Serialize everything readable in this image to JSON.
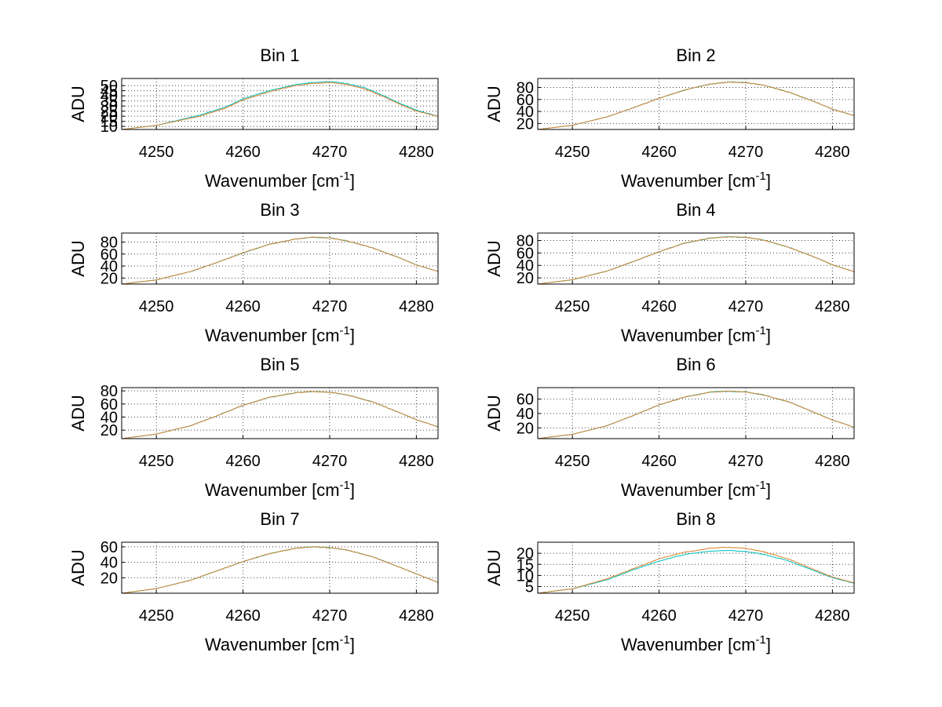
{
  "chart_data": [
    {
      "type": "line",
      "title": "Bin 1",
      "xlabel": "Wavenumber [cm",
      "xlabel_sup": "-1",
      "xlabel_suffix": "]",
      "ylabel": "ADU",
      "xlim": [
        4246,
        4282.5
      ],
      "ylim": [
        7,
        57
      ],
      "xticks": [
        4250,
        4260,
        4270,
        4280
      ],
      "yticks": [
        10,
        15,
        20,
        25,
        30,
        35,
        40,
        45,
        50
      ],
      "grid": true,
      "series": [
        {
          "color": "#00bfbf",
          "x": [
            4246,
            4250,
            4255,
            4258,
            4260,
            4263,
            4266,
            4268,
            4270,
            4272,
            4274,
            4276,
            4278,
            4280,
            4282.5
          ],
          "y": [
            7,
            11,
            21,
            29,
            37,
            45,
            51,
            53,
            54,
            52,
            48,
            41,
            33,
            26,
            20
          ]
        },
        {
          "color": "#d9822b",
          "x": [
            4246,
            4250,
            4255,
            4258,
            4260,
            4263,
            4266,
            4268,
            4270,
            4272,
            4274,
            4276,
            4278,
            4280,
            4282.5
          ],
          "y": [
            7,
            11,
            20,
            28,
            36,
            44,
            50,
            52,
            53,
            51,
            47,
            40,
            32,
            25,
            20
          ]
        }
      ]
    },
    {
      "type": "line",
      "title": "Bin 2",
      "xlabel": "Wavenumber [cm",
      "xlabel_sup": "-1",
      "xlabel_suffix": "]",
      "ylabel": "ADU",
      "xlim": [
        4246,
        4282.5
      ],
      "ylim": [
        10,
        95
      ],
      "xticks": [
        4250,
        4260,
        4270,
        4280
      ],
      "yticks": [
        20,
        40,
        60,
        80
      ],
      "grid": true,
      "series": [
        {
          "color": "#00bfbf",
          "x": [
            4246,
            4250,
            4254,
            4257,
            4260,
            4263,
            4266,
            4268,
            4270,
            4272,
            4275,
            4278,
            4280,
            4282.5
          ],
          "y": [
            10,
            17,
            31,
            46,
            62,
            76,
            86,
            89,
            88,
            84,
            72,
            56,
            44,
            33
          ]
        },
        {
          "color": "#d9822b",
          "x": [
            4246,
            4250,
            4254,
            4257,
            4260,
            4263,
            4266,
            4268,
            4270,
            4272,
            4275,
            4278,
            4280,
            4282.5
          ],
          "y": [
            10,
            17,
            31,
            46,
            62,
            76,
            86,
            89,
            88,
            84,
            72,
            56,
            44,
            33
          ]
        }
      ]
    },
    {
      "type": "line",
      "title": "Bin 3",
      "xlabel": "Wavenumber [cm",
      "xlabel_sup": "-1",
      "xlabel_suffix": "]",
      "ylabel": "ADU",
      "xlim": [
        4246,
        4282.5
      ],
      "ylim": [
        10,
        95
      ],
      "xticks": [
        4250,
        4260,
        4270,
        4280
      ],
      "yticks": [
        20,
        40,
        60,
        80
      ],
      "grid": true,
      "series": [
        {
          "color": "#00bfbf",
          "x": [
            4246,
            4250,
            4254,
            4257,
            4260,
            4263,
            4266,
            4268,
            4270,
            4272,
            4275,
            4278,
            4280,
            4282.5
          ],
          "y": [
            10,
            17,
            31,
            46,
            62,
            76,
            85,
            88,
            87,
            82,
            70,
            54,
            42,
            31
          ]
        },
        {
          "color": "#d9822b",
          "x": [
            4246,
            4250,
            4254,
            4257,
            4260,
            4263,
            4266,
            4268,
            4270,
            4272,
            4275,
            4278,
            4280,
            4282.5
          ],
          "y": [
            10,
            17,
            31,
            46,
            62,
            76,
            85,
            88,
            87,
            82,
            70,
            54,
            42,
            31
          ]
        }
      ]
    },
    {
      "type": "line",
      "title": "Bin 4",
      "xlabel": "Wavenumber [cm",
      "xlabel_sup": "-1",
      "xlabel_suffix": "]",
      "ylabel": "ADU",
      "xlim": [
        4246,
        4282.5
      ],
      "ylim": [
        10,
        92
      ],
      "xticks": [
        4250,
        4260,
        4270,
        4280
      ],
      "yticks": [
        20,
        40,
        60,
        80
      ],
      "grid": true,
      "series": [
        {
          "color": "#00bfbf",
          "x": [
            4246,
            4250,
            4254,
            4257,
            4260,
            4263,
            4266,
            4268,
            4270,
            4272,
            4275,
            4278,
            4280,
            4282.5
          ],
          "y": [
            10,
            17,
            31,
            46,
            62,
            76,
            84,
            86,
            85,
            81,
            69,
            53,
            41,
            30
          ]
        },
        {
          "color": "#d9822b",
          "x": [
            4246,
            4250,
            4254,
            4257,
            4260,
            4263,
            4266,
            4268,
            4270,
            4272,
            4275,
            4278,
            4280,
            4282.5
          ],
          "y": [
            10,
            17,
            31,
            46,
            62,
            76,
            84,
            86,
            85,
            81,
            69,
            53,
            41,
            30
          ]
        }
      ]
    },
    {
      "type": "line",
      "title": "Bin 5",
      "xlabel": "Wavenumber [cm",
      "xlabel_sup": "-1",
      "xlabel_suffix": "]",
      "ylabel": "ADU",
      "xlim": [
        4246,
        4282.5
      ],
      "ylim": [
        7,
        85
      ],
      "xticks": [
        4250,
        4260,
        4270,
        4280
      ],
      "yticks": [
        20,
        40,
        60,
        80
      ],
      "grid": true,
      "series": [
        {
          "color": "#00bfbf",
          "x": [
            4246,
            4250,
            4254,
            4257,
            4260,
            4263,
            4266,
            4268,
            4270,
            4272,
            4275,
            4278,
            4280,
            4282.5
          ],
          "y": [
            7,
            14,
            27,
            42,
            58,
            70,
            77,
            79,
            78,
            74,
            63,
            47,
            36,
            25
          ]
        },
        {
          "color": "#d9822b",
          "x": [
            4246,
            4250,
            4254,
            4257,
            4260,
            4263,
            4266,
            4268,
            4270,
            4272,
            4275,
            4278,
            4280,
            4282.5
          ],
          "y": [
            7,
            14,
            27,
            42,
            58,
            70,
            77,
            79,
            78,
            74,
            63,
            47,
            36,
            25
          ]
        }
      ]
    },
    {
      "type": "line",
      "title": "Bin 6",
      "xlabel": "Wavenumber [cm",
      "xlabel_sup": "-1",
      "xlabel_suffix": "]",
      "ylabel": "ADU",
      "xlim": [
        4246,
        4282.5
      ],
      "ylim": [
        5,
        76
      ],
      "xticks": [
        4250,
        4260,
        4270,
        4280
      ],
      "yticks": [
        20,
        40,
        60
      ],
      "grid": true,
      "series": [
        {
          "color": "#00bfbf",
          "x": [
            4246,
            4250,
            4254,
            4257,
            4260,
            4263,
            4266,
            4268,
            4270,
            4272,
            4275,
            4278,
            4280,
            4282.5
          ],
          "y": [
            5,
            11,
            23,
            37,
            52,
            63,
            70,
            71,
            70,
            66,
            56,
            41,
            31,
            21
          ]
        },
        {
          "color": "#d9822b",
          "x": [
            4246,
            4250,
            4254,
            4257,
            4260,
            4263,
            4266,
            4268,
            4270,
            4272,
            4275,
            4278,
            4280,
            4282.5
          ],
          "y": [
            5,
            11,
            23,
            37,
            52,
            63,
            70,
            71,
            70,
            66,
            56,
            41,
            31,
            21
          ]
        }
      ]
    },
    {
      "type": "line",
      "title": "Bin 7",
      "xlabel": "Wavenumber [cm",
      "xlabel_sup": "-1",
      "xlabel_suffix": "]",
      "ylabel": "ADU",
      "xlim": [
        4246,
        4282.5
      ],
      "ylim": [
        0,
        66
      ],
      "xticks": [
        4250,
        4260,
        4270,
        4280
      ],
      "yticks": [
        20,
        40,
        60
      ],
      "grid": true,
      "series": [
        {
          "color": "#00bfbf",
          "x": [
            4246,
            4250,
            4254,
            4257,
            4260,
            4263,
            4266,
            4268,
            4270,
            4272,
            4275,
            4278,
            4280,
            4282.5
          ],
          "y": [
            0,
            6,
            17,
            29,
            41,
            51,
            58,
            60,
            59,
            56,
            47,
            34,
            25,
            14
          ]
        },
        {
          "color": "#d9822b",
          "x": [
            4246,
            4250,
            4254,
            4257,
            4260,
            4263,
            4266,
            4268,
            4270,
            4272,
            4275,
            4278,
            4280,
            4282.5
          ],
          "y": [
            0,
            6,
            17,
            29,
            41,
            51,
            58,
            60,
            59,
            56,
            47,
            34,
            25,
            14
          ]
        }
      ]
    },
    {
      "type": "line",
      "title": "Bin 8",
      "xlabel": "Wavenumber [cm",
      "xlabel_sup": "-1",
      "xlabel_suffix": "]",
      "ylabel": "ADU",
      "xlim": [
        4246,
        4282.5
      ],
      "ylim": [
        2,
        25
      ],
      "xticks": [
        4250,
        4260,
        4270,
        4280
      ],
      "yticks": [
        5,
        10,
        15,
        20
      ],
      "grid": true,
      "series": [
        {
          "color": "#00bfbf",
          "x": [
            4246,
            4250,
            4254,
            4257,
            4260,
            4263,
            4266,
            4268,
            4270,
            4272,
            4275,
            4278,
            4280,
            4282.5
          ],
          "y": [
            2,
            4,
            8,
            12.5,
            16.5,
            19.5,
            21,
            21.3,
            20.8,
            19.6,
            16.5,
            12,
            9,
            6.5
          ]
        },
        {
          "color": "#d9822b",
          "x": [
            4246,
            4250,
            4254,
            4257,
            4260,
            4263,
            4266,
            4268,
            4270,
            4272,
            4275,
            4278,
            4280,
            4282.5
          ],
          "y": [
            2,
            4,
            8.5,
            13,
            17.5,
            20.5,
            22.3,
            22.7,
            22.2,
            20.8,
            17.3,
            12.5,
            9.3,
            6.7
          ]
        }
      ]
    }
  ]
}
